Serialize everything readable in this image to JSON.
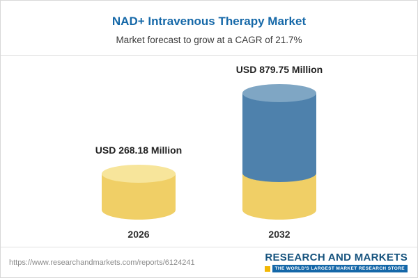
{
  "header": {
    "title": "NAD+ Intravenous Therapy Market",
    "subtitle": "Market forecast to grow at a CAGR of 21.7%"
  },
  "chart_data": {
    "type": "bar",
    "style": "3d-cylinder",
    "title": "NAD+ Intravenous Therapy Market",
    "subtitle": "Market forecast to grow at a CAGR of 21.7%",
    "unit": "USD Million",
    "cagr": "21.7%",
    "categories": [
      "2026",
      "2032"
    ],
    "values": [
      268.18,
      879.75
    ],
    "value_labels": [
      "USD 268.18 Million",
      "USD 879.75 Million"
    ],
    "legend_position": "none",
    "grid": false,
    "colors": {
      "title": "#1568A8",
      "cylinder_yellow": "#F0CF66",
      "cylinder_yellow_top": "#F7E59B",
      "cylinder_blue": "#4E81AC",
      "cylinder_blue_top": "#7FA6C4"
    }
  },
  "footer": {
    "url": "https://www.researchandmarkets.com/reports/6124241",
    "logo": {
      "name": "RESEARCH AND MARKETS",
      "tagline": "THE WORLD'S LARGEST MARKET RESEARCH STORE"
    }
  }
}
